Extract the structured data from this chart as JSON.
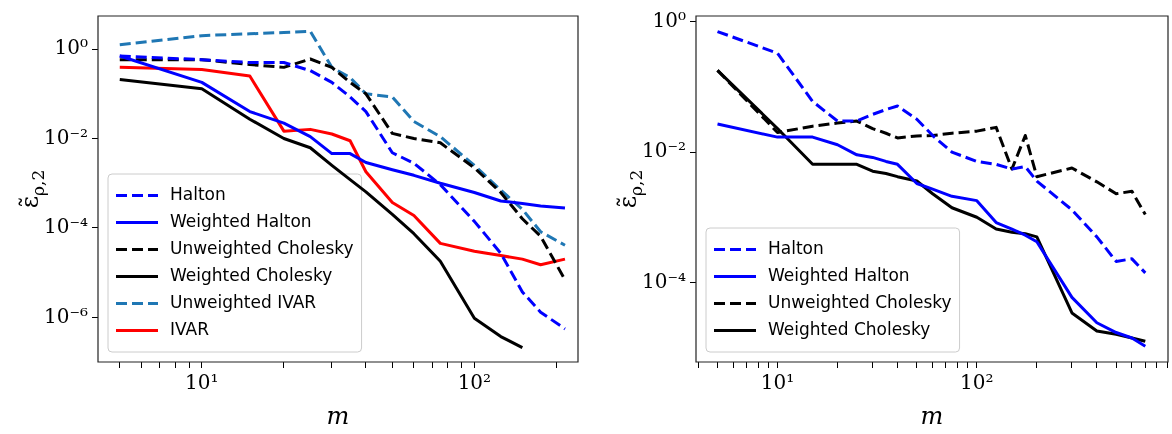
{
  "chart_data": [
    {
      "type": "line",
      "xlabel": "m",
      "ylabel": "ε̃$_{ρ,2}$",
      "log": "xy",
      "grid": false,
      "legend": "bottom left",
      "x": [
        5,
        10,
        15,
        20,
        25,
        30,
        35,
        40,
        50,
        60,
        75,
        100,
        125,
        150,
        175,
        215
      ],
      "xlim": [
        4.16,
        240
      ],
      "ylim": [
        1e-07,
        5.5
      ],
      "xticks": [
        {
          "value": 5,
          "label": null
        },
        {
          "value": 6,
          "label": null
        },
        {
          "value": 7,
          "label": null
        },
        {
          "value": 8,
          "label": null
        },
        {
          "value": 9,
          "label": null
        },
        {
          "value": 10,
          "label": "10¹"
        },
        {
          "value": 20,
          "label": null
        },
        {
          "value": 30,
          "label": null
        },
        {
          "value": 40,
          "label": null
        },
        {
          "value": 50,
          "label": null
        },
        {
          "value": 60,
          "label": null
        },
        {
          "value": 70,
          "label": null
        },
        {
          "value": 80,
          "label": null
        },
        {
          "value": 90,
          "label": null
        },
        {
          "value": 100,
          "label": "10²"
        },
        {
          "value": 200,
          "label": null
        }
      ],
      "yticks": [
        {
          "value": 1e-06,
          "label": "10⁻⁶"
        },
        {
          "value": 0.0001,
          "label": "10⁻⁴"
        },
        {
          "value": 0.01,
          "label": "10⁻²"
        },
        {
          "value": 1,
          "label": "10⁰"
        }
      ],
      "series": [
        {
          "name": "Halton",
          "type": "line",
          "line_style": "dashed",
          "color": "#0000ff",
          "values": [
            0.7,
            0.58,
            0.5,
            0.5,
            0.33,
            0.18,
            0.085,
            0.04,
            0.0048,
            0.0028,
            0.00093,
            0.00014,
            2.7e-05,
            3.7e-06,
            1.3e-06,
            5.5e-07
          ]
        },
        {
          "name": "Weighted Halton",
          "type": "line",
          "line_style": "solid",
          "color": "#0000ff",
          "values": [
            0.7,
            0.18,
            0.04,
            0.022,
            0.011,
            0.0046,
            0.0046,
            0.0029,
            0.002,
            0.0015,
            0.001,
            0.00062,
            0.0004,
            0.00035,
            0.00031,
            0.00028
          ]
        },
        {
          "name": "Unweighted Cholesky",
          "type": "line",
          "line_style": "dashed",
          "color": "#000000",
          "values": [
            0.58,
            0.58,
            0.45,
            0.39,
            0.6,
            0.39,
            0.18,
            0.1,
            0.013,
            0.01,
            0.008,
            0.0022,
            0.00062,
            0.00016,
            6.5e-05,
            6.9e-06
          ]
        },
        {
          "name": "Weighted Cholesky",
          "type": "line",
          "line_style": "solid",
          "color": "#000000",
          "values": [
            0.21,
            0.13,
            0.027,
            0.01,
            0.0062,
            0.0025,
            0.0012,
            0.00064,
            0.0002,
            7.4e-05,
            1.8e-05,
            9.5e-07,
            3.7e-07,
            2.1e-07,
            null,
            null
          ]
        },
        {
          "name": "Unweighted IVAR",
          "type": "line",
          "line_style": "dashed",
          "color": "#1f77b4",
          "values": [
            1.25,
            2.0,
            2.2,
            2.35,
            2.5,
            0.39,
            0.23,
            0.1,
            0.085,
            0.024,
            0.011,
            0.0025,
            0.0007,
            0.00026,
            8.2e-05,
            4.1e-05
          ]
        },
        {
          "name": "IVAR",
          "type": "line",
          "line_style": "solid",
          "color": "#ff0000",
          "values": [
            0.39,
            0.35,
            0.25,
            0.0146,
            0.016,
            0.0126,
            0.0089,
            0.0018,
            0.00037,
            0.00019,
            4.5e-05,
            3e-05,
            2.4e-05,
            2e-05,
            1.5e-05,
            2e-05
          ]
        }
      ]
    },
    {
      "type": "line",
      "xlabel": "m",
      "ylabel": "ε̃$_{ρ,2}$",
      "log": "xy",
      "grid": false,
      "legend": "bottom left",
      "x": [
        5,
        10,
        15,
        20,
        25,
        30,
        35,
        40,
        50,
        60,
        75,
        100,
        125,
        150,
        175,
        200,
        300,
        400,
        500,
        600,
        700
      ],
      "xlim": [
        3.9,
        910
      ],
      "ylim": [
        6e-06,
        1.23
      ],
      "xticks": [
        {
          "value": 4,
          "label": null
        },
        {
          "value": 5,
          "label": null
        },
        {
          "value": 6,
          "label": null
        },
        {
          "value": 7,
          "label": null
        },
        {
          "value": 8,
          "label": null
        },
        {
          "value": 9,
          "label": null
        },
        {
          "value": 10,
          "label": "10¹"
        },
        {
          "value": 20,
          "label": null
        },
        {
          "value": 30,
          "label": null
        },
        {
          "value": 40,
          "label": null
        },
        {
          "value": 50,
          "label": null
        },
        {
          "value": 60,
          "label": null
        },
        {
          "value": 70,
          "label": null
        },
        {
          "value": 80,
          "label": null
        },
        {
          "value": 90,
          "label": null
        },
        {
          "value": 100,
          "label": "10²"
        },
        {
          "value": 200,
          "label": null
        },
        {
          "value": 300,
          "label": null
        },
        {
          "value": 400,
          "label": null
        },
        {
          "value": 500,
          "label": null
        },
        {
          "value": 600,
          "label": null
        },
        {
          "value": 700,
          "label": null
        },
        {
          "value": 800,
          "label": null
        },
        {
          "value": 900,
          "label": null
        }
      ],
      "yticks": [
        {
          "value": 0.0001,
          "label": "10⁻⁴"
        },
        {
          "value": 0.01,
          "label": "10⁻²"
        },
        {
          "value": 1,
          "label": "10⁰"
        }
      ],
      "series": [
        {
          "name": "Halton",
          "type": "line",
          "line_style": "dashed",
          "color": "#0000ff",
          "values": [
            0.71,
            0.33,
            0.06,
            0.03,
            0.03,
            0.038,
            0.045,
            0.051,
            0.032,
            0.018,
            0.01,
            0.0072,
            0.0065,
            0.0055,
            0.006,
            0.0036,
            0.0013,
            0.0005,
            0.00021,
            0.00023,
            0.00014
          ]
        },
        {
          "name": "Weighted Halton",
          "type": "line",
          "line_style": "solid",
          "color": "#0000ff",
          "values": [
            0.027,
            0.017,
            0.017,
            0.013,
            0.0091,
            0.0083,
            0.0072,
            0.0065,
            0.0033,
            0.0027,
            0.0021,
            0.0018,
            0.00083,
            0.00066,
            0.00053,
            0.00042,
            5.9e-05,
            2.4e-05,
            1.7e-05,
            1.4e-05,
            1.05e-05
          ]
        },
        {
          "name": "Unweighted Cholesky",
          "type": "line",
          "line_style": "dashed",
          "color": "#000000",
          "values": [
            0.18,
            0.02,
            0.025,
            0.028,
            0.03,
            0.023,
            0.0195,
            0.0165,
            0.0177,
            0.018,
            0.0195,
            0.021,
            0.024,
            0.0055,
            0.018,
            0.0042,
            0.0057,
            0.0035,
            0.0023,
            0.0025,
            0.0011
          ]
        },
        {
          "name": "Weighted Cholesky",
          "type": "line",
          "line_style": "solid",
          "color": "#000000",
          "values": [
            0.18,
            0.023,
            0.0065,
            0.0065,
            0.0065,
            0.0051,
            0.0047,
            0.0042,
            0.0036,
            0.0023,
            0.0014,
            0.001,
            0.00066,
            0.00059,
            0.00056,
            0.0005,
            3.4e-05,
            1.8e-05,
            1.6e-05,
            1.4e-05,
            1.25e-05
          ]
        }
      ]
    }
  ]
}
